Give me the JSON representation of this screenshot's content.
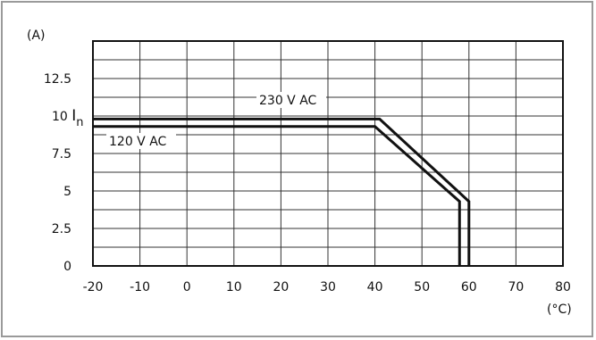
{
  "chart_data": {
    "type": "line",
    "title": "",
    "xlabel": "",
    "ylabel": "",
    "y_unit": "(A)",
    "x_unit": "(°C)",
    "x_ticks": [
      "-20",
      "-10",
      "0",
      "10",
      "20",
      "30",
      "40",
      "50",
      "60",
      "70",
      "80"
    ],
    "y_ticks": [
      "0",
      "2.5",
      "5",
      "7.5",
      "10",
      "12.5"
    ],
    "y_tick_suffix": {
      "10": "In"
    },
    "xlim": [
      -20,
      80
    ],
    "ylim": [
      0,
      15
    ],
    "grid": true,
    "series": [
      {
        "name": "230 V AC",
        "x": [
          -20,
          41,
          60,
          60
        ],
        "y": [
          9.8,
          9.8,
          4.3,
          0
        ]
      },
      {
        "name": "120 V AC",
        "x": [
          -20,
          40,
          58,
          58
        ],
        "y": [
          9.3,
          9.3,
          4.3,
          0
        ]
      }
    ]
  }
}
